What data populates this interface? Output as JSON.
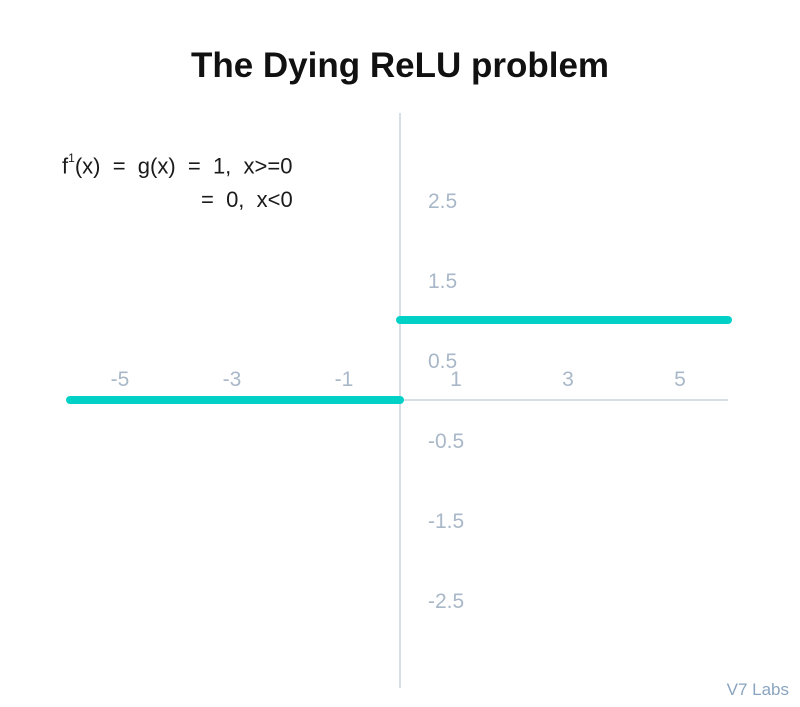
{
  "chart_data": {
    "type": "line",
    "title": "The Dying ReLU problem",
    "annotation": {
      "line1_prefix": "f",
      "line1_sup": "1",
      "line1_rest": "(x)  =  g(x)  =  1,  x>=0",
      "line2": "=  0,  x<0"
    },
    "x_ticks": [
      -5,
      -3,
      -1,
      1,
      3,
      5
    ],
    "x_tick_labels": [
      "-5",
      "-3",
      "-1",
      "1",
      "3",
      "5"
    ],
    "y_ticks": [
      2.5,
      1.5,
      0.5,
      -0.5,
      -1.5,
      -2.5
    ],
    "y_tick_labels": [
      "2.5",
      "1.5",
      "0.5",
      "-0.5",
      "-1.5",
      "-2.5"
    ],
    "xlim": [
      -5.9,
      5.9
    ],
    "ylim": [
      -3.6,
      3.6
    ],
    "series": [
      {
        "x": [
          -5.9,
          0
        ],
        "y": [
          0,
          0
        ]
      },
      {
        "x": [
          0,
          5.9
        ],
        "y": [
          1,
          1
        ]
      }
    ],
    "line_color": "#00d1c7",
    "axis_color": "#cbd3dc",
    "tick_color": "#a9b8c8",
    "grid": false
  },
  "watermark": "V7 Labs"
}
